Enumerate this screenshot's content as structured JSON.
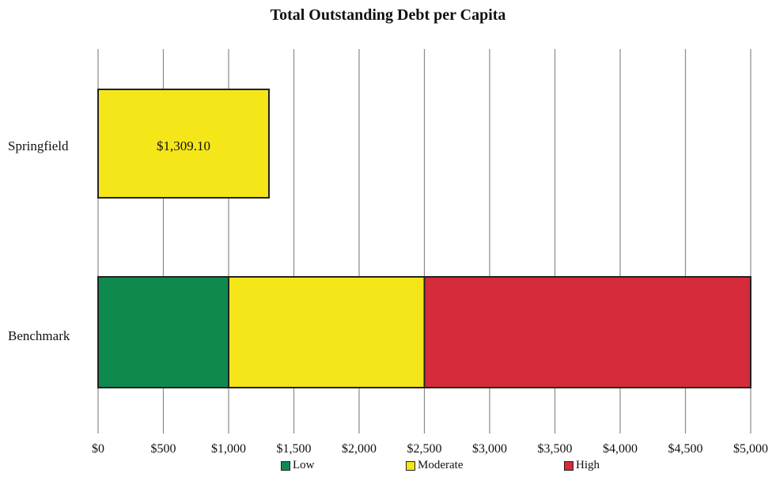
{
  "chart_data": {
    "type": "bar",
    "orientation": "horizontal",
    "stacked": true,
    "title": "Total Outstanding Debt per Capita",
    "categories": [
      "Springfield",
      "Benchmark"
    ],
    "series": [
      {
        "name": "Low",
        "color": "#0f8a4f",
        "values": [
          0,
          1000
        ]
      },
      {
        "name": "Moderate",
        "color": "#f5e619",
        "values": [
          1309.1,
          1500
        ]
      },
      {
        "name": "High",
        "color": "#d52b3a",
        "values": [
          0,
          2500
        ]
      }
    ],
    "data_labels": [
      {
        "category": "Springfield",
        "text": "$1,309.10"
      }
    ],
    "x_ticks": [
      "$0",
      "$500",
      "$1,000",
      "$1,500",
      "$2,000",
      "$2,500",
      "$3,000",
      "$3,500",
      "$4,000",
      "$4,500",
      "$5,000"
    ],
    "xlim": [
      0,
      5000
    ],
    "grid": "vertical",
    "legend_position": "bottom"
  }
}
